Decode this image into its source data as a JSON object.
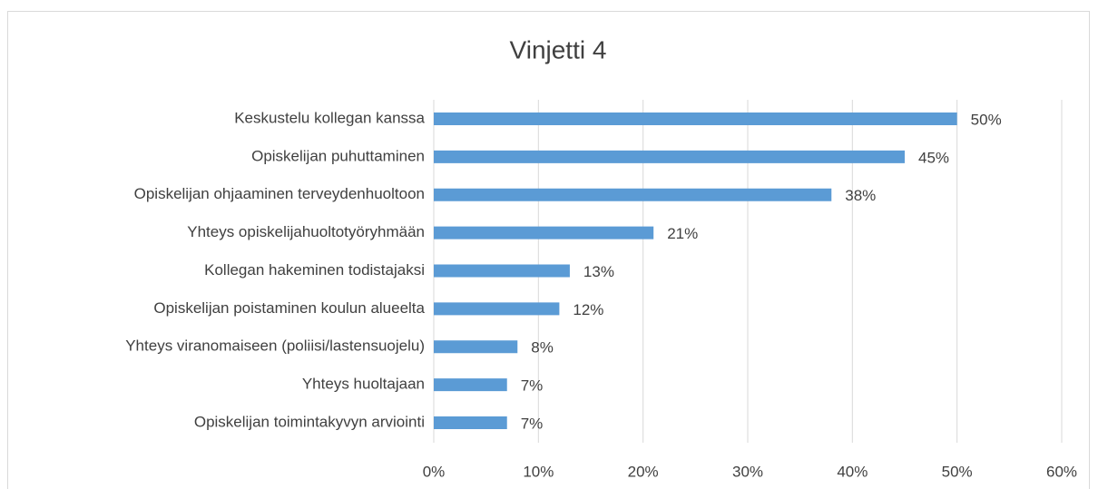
{
  "chart_data": {
    "type": "bar",
    "orientation": "horizontal",
    "title": "Vinjetti 4",
    "categories": [
      "Keskustelu kollegan kanssa",
      "Opiskelijan puhuttaminen",
      "Opiskelijan ohjaaminen terveydenhuoltoon",
      "Yhteys opiskelijahuoltotyöryhmään",
      "Kollegan hakeminen todistajaksi",
      "Opiskelijan poistaminen koulun alueelta",
      "Yhteys viranomaiseen (poliisi/lastensuojelu)",
      "Yhteys huoltajaan",
      "Opiskelijan toimintakyvyn arviointi"
    ],
    "values": [
      50,
      45,
      38,
      21,
      13,
      12,
      8,
      7,
      7
    ],
    "value_labels": [
      "50%",
      "45%",
      "38%",
      "21%",
      "13%",
      "12%",
      "8%",
      "7%",
      "7%"
    ],
    "color": "#5b9bd5",
    "xlim": [
      0,
      60
    ],
    "xticks": [
      {
        "value": 0,
        "label": "0%"
      },
      {
        "value": 10,
        "label": "10%"
      },
      {
        "value": 20,
        "label": "20%"
      },
      {
        "value": 30,
        "label": "30%"
      },
      {
        "value": 40,
        "label": "40%"
      },
      {
        "value": 50,
        "label": "50%"
      },
      {
        "value": 60,
        "label": "60%"
      }
    ],
    "grid": true
  }
}
